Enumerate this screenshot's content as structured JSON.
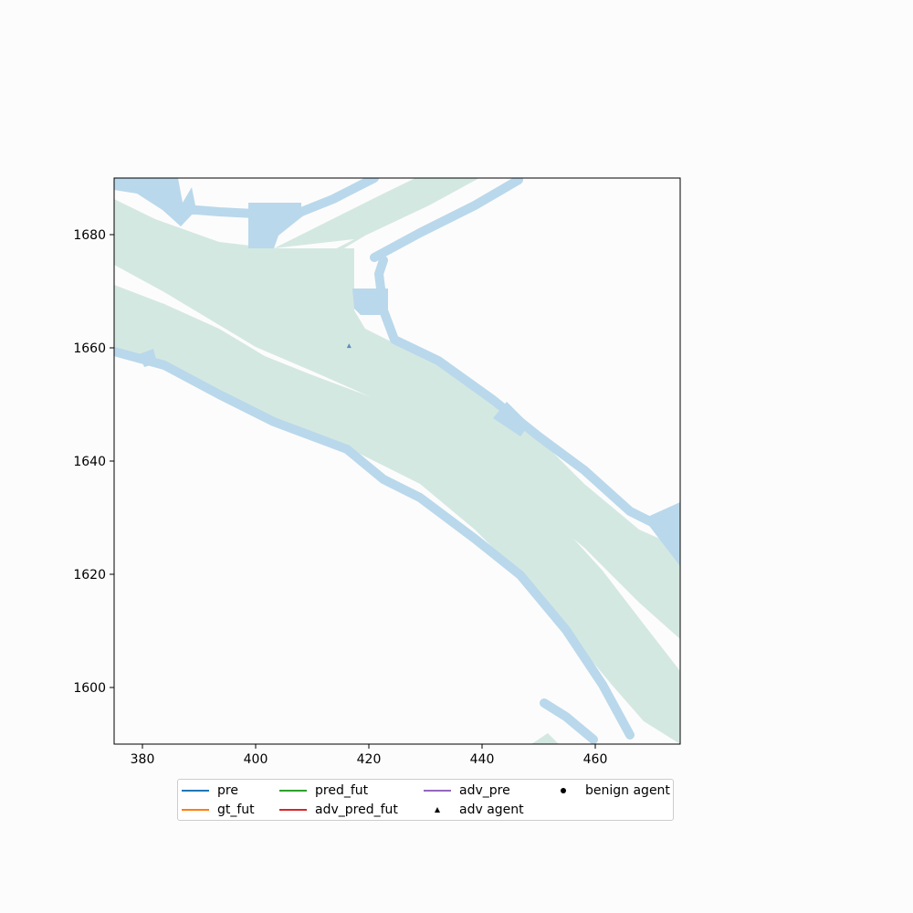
{
  "map": {
    "x_axis": {
      "min": 375,
      "max": 475,
      "ticks": [
        "380",
        "400",
        "420",
        "440",
        "460"
      ]
    },
    "y_axis": {
      "min": 1590,
      "max": 1690,
      "ticks": [
        "1600",
        "1620",
        "1640",
        "1660",
        "1680"
      ]
    },
    "colors": {
      "lane": "#d4e8e2",
      "sidewalk": "#b9d8eb",
      "adv_agent": "#5b8fb9",
      "background": "#fdfcfc"
    },
    "adv_agent_position": {
      "x": 416.5,
      "y": 1660.3
    }
  },
  "legend": {
    "items": [
      {
        "label": "pre",
        "kind": "line",
        "color": "#1f77b4"
      },
      {
        "label": "gt_fut",
        "kind": "line",
        "color": "#ff7f0e"
      },
      {
        "label": "pred_fut",
        "kind": "line",
        "color": "#2ca02c"
      },
      {
        "label": "adv_pred_fut",
        "kind": "line",
        "color": "#d62728"
      },
      {
        "label": "adv_pre",
        "kind": "line",
        "color": "#9467bd"
      },
      {
        "label": "adv agent",
        "kind": "triangle",
        "color": "#000000"
      },
      {
        "label": "benign agent",
        "kind": "dot",
        "color": "#000000"
      }
    ]
  }
}
